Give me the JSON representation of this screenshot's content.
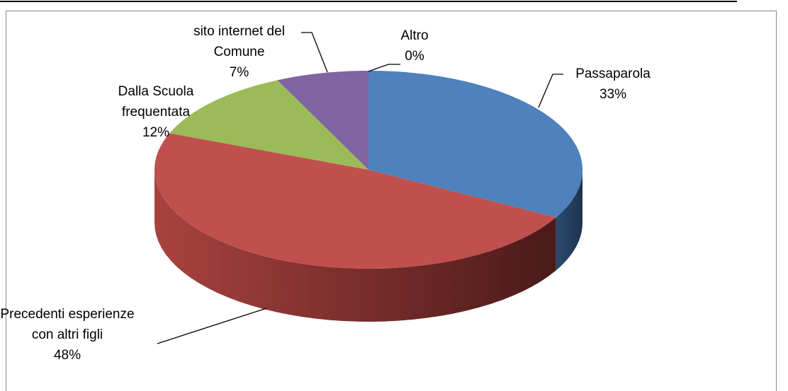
{
  "chart_data": {
    "type": "pie",
    "categories": [
      "Passaparola",
      "Precedenti esperienze con altri figli",
      "Dalla Scuola frequentata",
      "sito internet del Comune",
      "Altro"
    ],
    "values": [
      33,
      48,
      12,
      7,
      0
    ],
    "value_labels": [
      "33%",
      "48%",
      "12%",
      "7%",
      "0%"
    ],
    "colors": [
      "#4f81bd",
      "#c0504d",
      "#9bbb59",
      "#8064a2",
      "#4bacc6"
    ]
  }
}
